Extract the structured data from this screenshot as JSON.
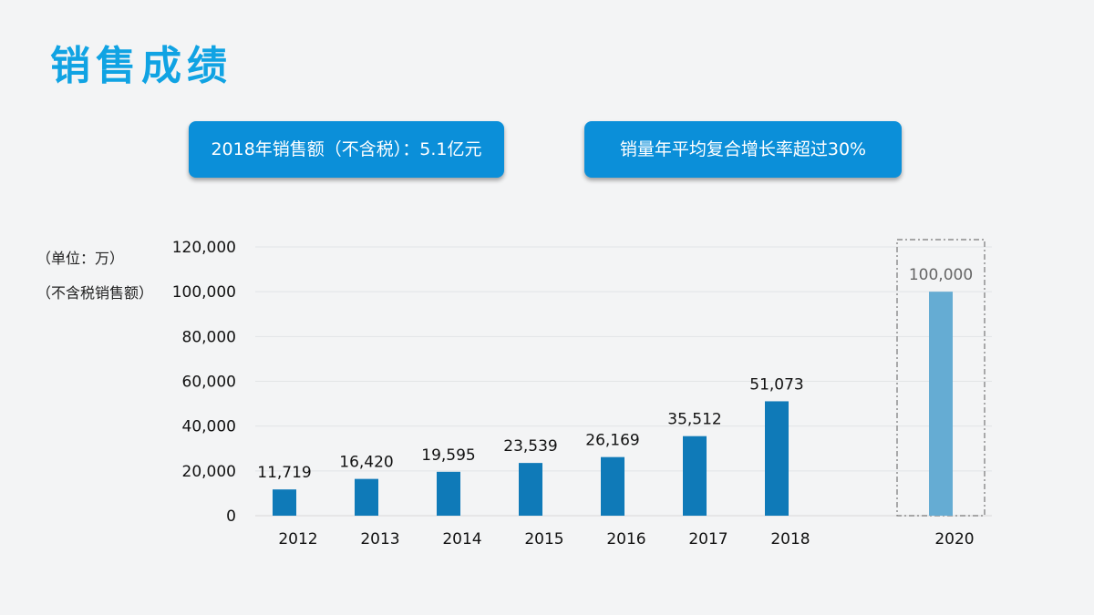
{
  "title": "销售成绩",
  "callouts": [
    {
      "text": "2018年销售额（不含税）：5.1亿元"
    },
    {
      "text": "销量年平均复合增长率超过30%"
    }
  ],
  "unit_notes": [
    "（单位：万）",
    "（不含税销售额）"
  ],
  "colors": {
    "title": "#10a3e3",
    "callout_bg": "#0b8fd9",
    "bar": "#0f7ab8",
    "bar_highlight": "#65acd3",
    "highlight_box": "#777777"
  },
  "chart_data": {
    "type": "bar",
    "categories": [
      "2012",
      "2013",
      "2014",
      "2015",
      "2016",
      "2017",
      "2018",
      "2020"
    ],
    "values": [
      11719,
      16420,
      19595,
      23539,
      26169,
      35512,
      51073,
      100000
    ],
    "value_labels": [
      "11,719",
      "16,420",
      "19,595",
      "23,539",
      "26,169",
      "35,512",
      "51,073",
      "100,000"
    ],
    "highlighted_category": "2020",
    "ylim": [
      0,
      120000
    ],
    "yticks": [
      0,
      20000,
      40000,
      60000,
      80000,
      100000,
      120000
    ],
    "ytick_labels": [
      "0",
      "20,000",
      "40,000",
      "60,000",
      "80,000",
      "100,000",
      "120,000"
    ],
    "grid": true,
    "xlabel": "",
    "ylabel": ""
  }
}
